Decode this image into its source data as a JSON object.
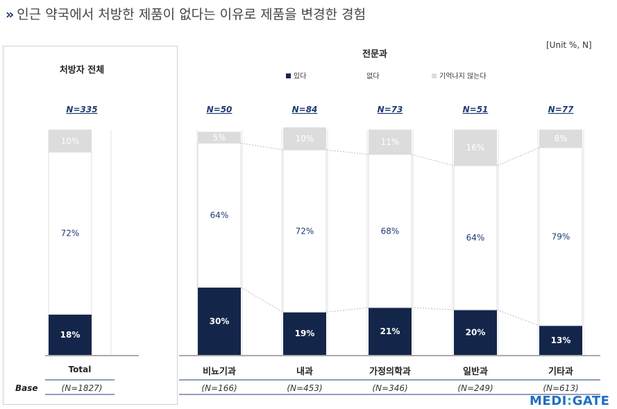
{
  "title": "인근 약국에서 처방한 제품이 없다는 이유로 제품을 변경한 경험",
  "unit": "[Unit %, N]",
  "logo": {
    "text_left": "MEDI",
    "separator": ":",
    "text_right": "GATE"
  },
  "colors": {
    "yes": "#13264a",
    "no": "#ffffff",
    "dontknow": "#dcdcdc",
    "accent": "#1f3b73"
  },
  "chart_data": [
    {
      "type": "bar",
      "stacked": true,
      "title": "처방자 전체",
      "series_order": [
        "있다",
        "없다",
        "기억나지 않는다"
      ],
      "categories": [
        "Total"
      ],
      "n_labels": [
        "N=335"
      ],
      "base_labels": [
        "(N=1827)"
      ],
      "base_title": "Base",
      "series": [
        {
          "name": "있다",
          "values": [
            18
          ]
        },
        {
          "name": "없다",
          "values": [
            72
          ]
        },
        {
          "name": "기억나지 않는다",
          "values": [
            10
          ]
        }
      ],
      "ylim": [
        0,
        100
      ]
    },
    {
      "type": "bar",
      "stacked": true,
      "title": "전문과",
      "legend": [
        "있다",
        "없다",
        "기억나지 않는다"
      ],
      "categories": [
        "비뇨기과",
        "내과",
        "가정의학과",
        "일반과",
        "기타과"
      ],
      "n_labels": [
        "N=50",
        "N=84",
        "N=73",
        "N=51",
        "N=77"
      ],
      "base_labels": [
        "(N=166)",
        "(N=453)",
        "(N=346)",
        "(N=249)",
        "(N=613)"
      ],
      "series": [
        {
          "name": "있다",
          "values": [
            30,
            19,
            21,
            20,
            13
          ]
        },
        {
          "name": "없다",
          "values": [
            64,
            72,
            68,
            64,
            79
          ]
        },
        {
          "name": "기억나지 않는다",
          "values": [
            5,
            10,
            11,
            16,
            8
          ]
        }
      ],
      "ylim": [
        0,
        100
      ]
    }
  ]
}
